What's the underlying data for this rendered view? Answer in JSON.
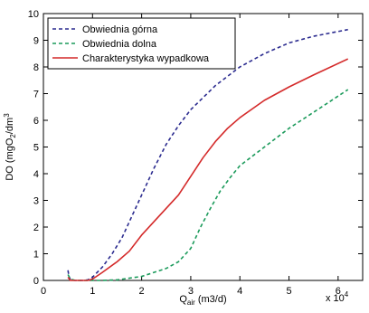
{
  "chart_data": {
    "type": "line",
    "title": "",
    "xlabel": {
      "main": "Q",
      "sub": "air",
      "rest": " (m3/d)"
    },
    "ylabel": {
      "pre": "DO  (mgO",
      "sub": "2",
      "mid": "/dm",
      "sup": "3"
    },
    "x_multiplier": {
      "base": "x 10",
      "exp": "4"
    },
    "xlim": [
      0,
      6.5
    ],
    "ylim": [
      0,
      10
    ],
    "xticks": [
      0,
      1,
      2,
      3,
      4,
      5,
      6
    ],
    "yticks": [
      0,
      1,
      2,
      3,
      4,
      5,
      6,
      7,
      8,
      9,
      10
    ],
    "grid": false,
    "legend_position": "top-left",
    "series": [
      {
        "name": "Obwiednia górna",
        "color": "#2b2b8f",
        "dash": "dashed",
        "points": [
          [
            0.5,
            0.38
          ],
          [
            0.52,
            0.15
          ],
          [
            0.55,
            0.02
          ],
          [
            0.65,
            0.0
          ],
          [
            0.8,
            0.0
          ],
          [
            0.9,
            0.02
          ],
          [
            1.0,
            0.12
          ],
          [
            1.2,
            0.5
          ],
          [
            1.4,
            1.0
          ],
          [
            1.6,
            1.6
          ],
          [
            1.8,
            2.4
          ],
          [
            2.0,
            3.2
          ],
          [
            2.25,
            4.2
          ],
          [
            2.5,
            5.1
          ],
          [
            2.75,
            5.8
          ],
          [
            3.0,
            6.4
          ],
          [
            3.5,
            7.3
          ],
          [
            4.0,
            8.0
          ],
          [
            4.5,
            8.5
          ],
          [
            5.0,
            8.9
          ],
          [
            5.5,
            9.15
          ],
          [
            6.2,
            9.4
          ]
        ]
      },
      {
        "name": "Obwiednia dolna",
        "color": "#1a9a5a",
        "dash": "dashed",
        "points": [
          [
            0.5,
            0.22
          ],
          [
            0.55,
            0.05
          ],
          [
            0.65,
            0.0
          ],
          [
            0.9,
            0.0
          ],
          [
            1.2,
            0.0
          ],
          [
            1.5,
            0.02
          ],
          [
            2.0,
            0.15
          ],
          [
            2.5,
            0.45
          ],
          [
            2.75,
            0.7
          ],
          [
            3.0,
            1.2
          ],
          [
            3.2,
            2.0
          ],
          [
            3.4,
            2.7
          ],
          [
            3.6,
            3.35
          ],
          [
            3.8,
            3.85
          ],
          [
            4.0,
            4.3
          ],
          [
            4.5,
            5.0
          ],
          [
            5.0,
            5.7
          ],
          [
            5.5,
            6.3
          ],
          [
            6.2,
            7.15
          ]
        ]
      },
      {
        "name": "Charakterystyka wypadkowa",
        "color": "#d42a2a",
        "dash": "solid",
        "points": [
          [
            0.5,
            0.12
          ],
          [
            0.55,
            0.0
          ],
          [
            0.7,
            0.0
          ],
          [
            0.9,
            0.0
          ],
          [
            1.0,
            0.05
          ],
          [
            1.2,
            0.3
          ],
          [
            1.5,
            0.7
          ],
          [
            1.75,
            1.1
          ],
          [
            2.0,
            1.7
          ],
          [
            2.25,
            2.2
          ],
          [
            2.5,
            2.7
          ],
          [
            2.75,
            3.2
          ],
          [
            3.0,
            3.9
          ],
          [
            3.25,
            4.6
          ],
          [
            3.5,
            5.2
          ],
          [
            3.75,
            5.7
          ],
          [
            4.0,
            6.1
          ],
          [
            4.5,
            6.75
          ],
          [
            5.0,
            7.25
          ],
          [
            5.5,
            7.7
          ],
          [
            6.2,
            8.3
          ]
        ]
      }
    ]
  }
}
